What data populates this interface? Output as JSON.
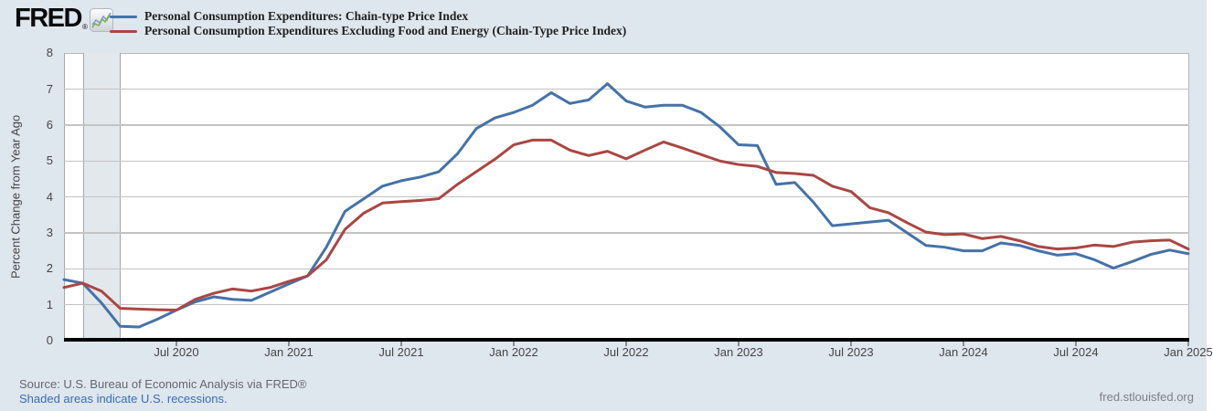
{
  "header": {
    "logo_text": "FRED",
    "registered_mark": "®"
  },
  "chart_data": {
    "type": "line",
    "title": "",
    "ylabel": "Percent Change from Year Ago",
    "ylim": [
      0,
      8
    ],
    "ytick_labels": [
      "0",
      "1",
      "2",
      "3",
      "4",
      "5",
      "6",
      "7",
      "8"
    ],
    "grid": "horizontal",
    "legend_position": "top-left",
    "x_tick_labels": [
      "Jul 2020",
      "Jan 2021",
      "Jul 2021",
      "Jan 2022",
      "Jul 2022",
      "Jan 2023",
      "Jul 2023",
      "Jan 2024",
      "Jul 2024",
      "Jan 2025"
    ],
    "x_tick_month_indices": [
      6,
      12,
      18,
      24,
      30,
      36,
      42,
      48,
      54,
      60
    ],
    "x_months_covered": "monthly, Jan 2020 through Jan 2025",
    "recession_band_month_indices": [
      1,
      3
    ],
    "series": [
      {
        "name": "Personal Consumption Expenditures: Chain-type Price Index",
        "color": "#4572a7",
        "values": [
          1.7,
          1.6,
          1.05,
          0.4,
          0.38,
          0.6,
          0.85,
          1.08,
          1.22,
          1.15,
          1.12,
          1.35,
          1.58,
          1.8,
          2.6,
          3.6,
          3.95,
          4.3,
          4.45,
          4.55,
          4.7,
          5.2,
          5.9,
          6.2,
          6.35,
          6.55,
          6.9,
          6.6,
          6.7,
          7.15,
          6.67,
          6.5,
          6.55,
          6.55,
          6.35,
          5.95,
          5.45,
          5.43,
          4.35,
          4.4,
          3.85,
          3.2,
          3.25,
          3.3,
          3.35,
          3.0,
          2.65,
          2.6,
          2.5,
          2.5,
          2.72,
          2.65,
          2.5,
          2.38,
          2.42,
          2.25,
          2.02,
          2.2,
          2.4,
          2.52,
          2.42
        ]
      },
      {
        "name": "Personal Consumption Expenditures Excluding Food and Energy (Chain-Type Price Index)",
        "color": "#aa4643",
        "values": [
          1.48,
          1.6,
          1.38,
          0.9,
          0.88,
          0.86,
          0.85,
          1.15,
          1.32,
          1.44,
          1.38,
          1.48,
          1.65,
          1.8,
          2.25,
          3.1,
          3.55,
          3.83,
          3.87,
          3.9,
          3.95,
          4.35,
          4.7,
          5.05,
          5.45,
          5.58,
          5.58,
          5.3,
          5.15,
          5.27,
          5.06,
          5.3,
          5.53,
          5.36,
          5.18,
          5.0,
          4.9,
          4.85,
          4.68,
          4.65,
          4.6,
          4.3,
          4.15,
          3.7,
          3.56,
          3.28,
          3.02,
          2.95,
          2.97,
          2.84,
          2.9,
          2.78,
          2.62,
          2.55,
          2.58,
          2.66,
          2.62,
          2.74,
          2.78,
          2.8,
          2.55
        ]
      }
    ]
  },
  "footer": {
    "source_line": "Source: U.S. Bureau of Economic Analysis via FRED®",
    "recession_note": "Shaded areas indicate U.S. recessions.",
    "site_link": "fred.stlouisfed.org"
  }
}
